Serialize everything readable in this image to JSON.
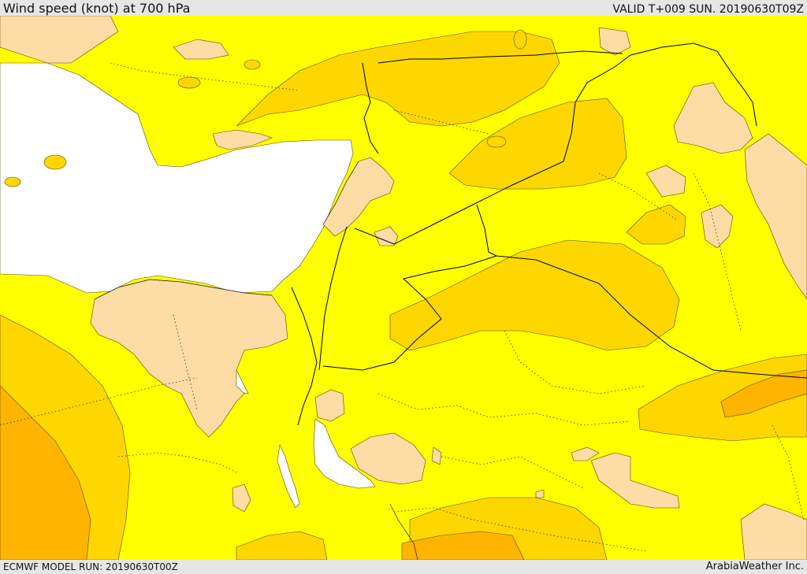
{
  "header": {
    "title": "Wind speed (knot) at 700 hPa",
    "valid": "VALID T+009 SUN. 20190630T09Z"
  },
  "footer": {
    "model_run": "ECMWF MODEL RUN: 20190630T00Z",
    "credit": "ArabiaWeather Inc."
  },
  "colors": {
    "band_low": "#ffff00",
    "band_mid": "#ffd700",
    "band_high": "#ffb400",
    "land_calm": "#fddca5",
    "sea_blank": "#ffffff",
    "contour": "#5a4a00",
    "border": "#000000"
  }
}
